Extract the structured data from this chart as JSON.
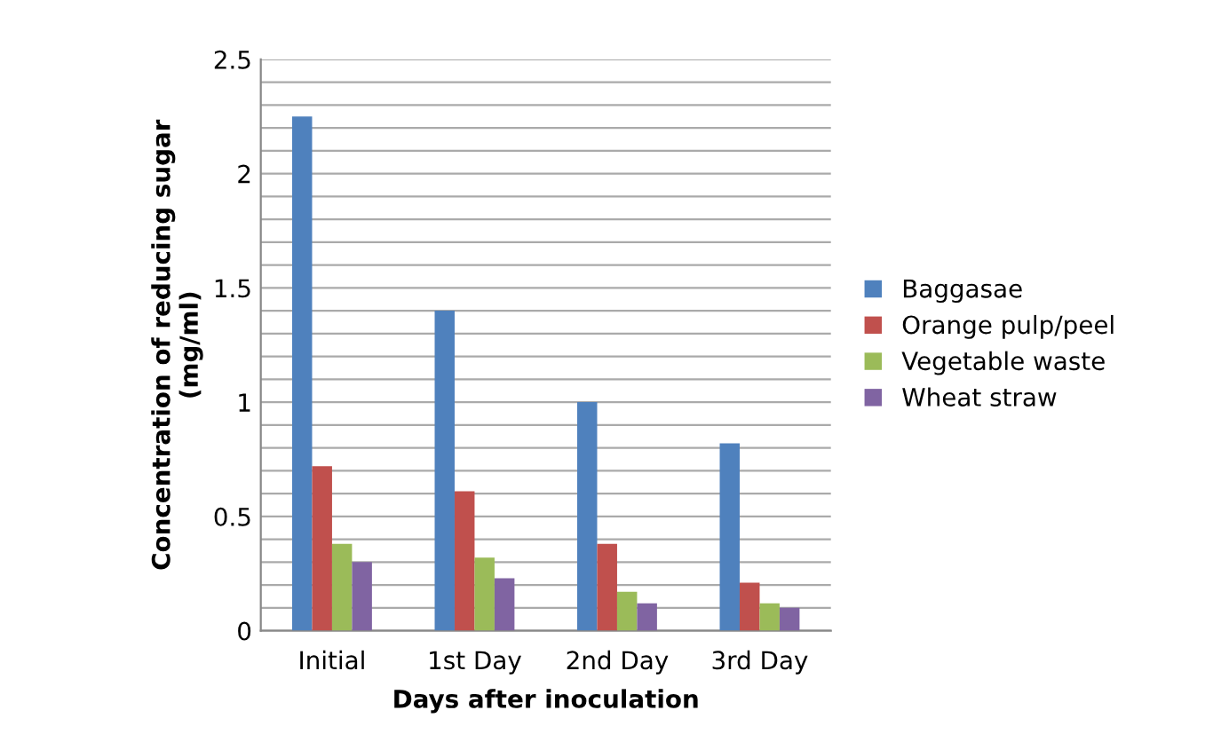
{
  "chart_data": {
    "type": "bar",
    "xlabel": "Days after inoculation",
    "ylabel": "Concentration of reducing sugar\n(mg/ml)",
    "categories": [
      "Initial",
      "1st Day",
      "2nd Day",
      "3rd Day"
    ],
    "series": [
      {
        "name": "Baggasae",
        "color": "#4f81bd",
        "values": [
          2.25,
          1.4,
          1.0,
          0.82
        ]
      },
      {
        "name": "Orange pulp/peel",
        "color": "#c0504d",
        "values": [
          0.72,
          0.61,
          0.38,
          0.21
        ]
      },
      {
        "name": "Vegetable waste",
        "color": "#9bbb59",
        "values": [
          0.38,
          0.32,
          0.17,
          0.12
        ]
      },
      {
        "name": "Wheat straw",
        "color": "#8064a2",
        "values": [
          0.3,
          0.23,
          0.12,
          0.1
        ]
      }
    ],
    "ylim": [
      0,
      2.5
    ],
    "yticks": [
      0,
      {
        "value": 0.1,
        "label": null
      },
      {
        "value": 0.2,
        "label": null
      },
      {
        "value": 0.3,
        "label": null
      },
      {
        "value": 0.4,
        "label": null
      },
      0.5,
      {
        "value": 0.6,
        "label": null
      },
      {
        "value": 0.7,
        "label": null
      },
      {
        "value": 0.8,
        "label": null
      },
      {
        "value": 0.9,
        "label": null
      },
      1,
      {
        "value": 1.1,
        "label": null
      },
      {
        "value": 1.2,
        "label": null
      },
      {
        "value": 1.3,
        "label": null
      },
      {
        "value": 1.4,
        "label": null
      },
      1.5,
      {
        "value": 1.6,
        "label": null
      },
      {
        "value": 1.7,
        "label": null
      },
      {
        "value": 1.8,
        "label": null
      },
      {
        "value": 1.9,
        "label": null
      },
      2,
      {
        "value": 2.1,
        "label": null
      },
      {
        "value": 2.2,
        "label": null
      },
      {
        "value": 2.3,
        "label": null
      },
      {
        "value": 2.4,
        "label": null
      },
      2.5
    ],
    "grid": "y",
    "legend": "right"
  }
}
